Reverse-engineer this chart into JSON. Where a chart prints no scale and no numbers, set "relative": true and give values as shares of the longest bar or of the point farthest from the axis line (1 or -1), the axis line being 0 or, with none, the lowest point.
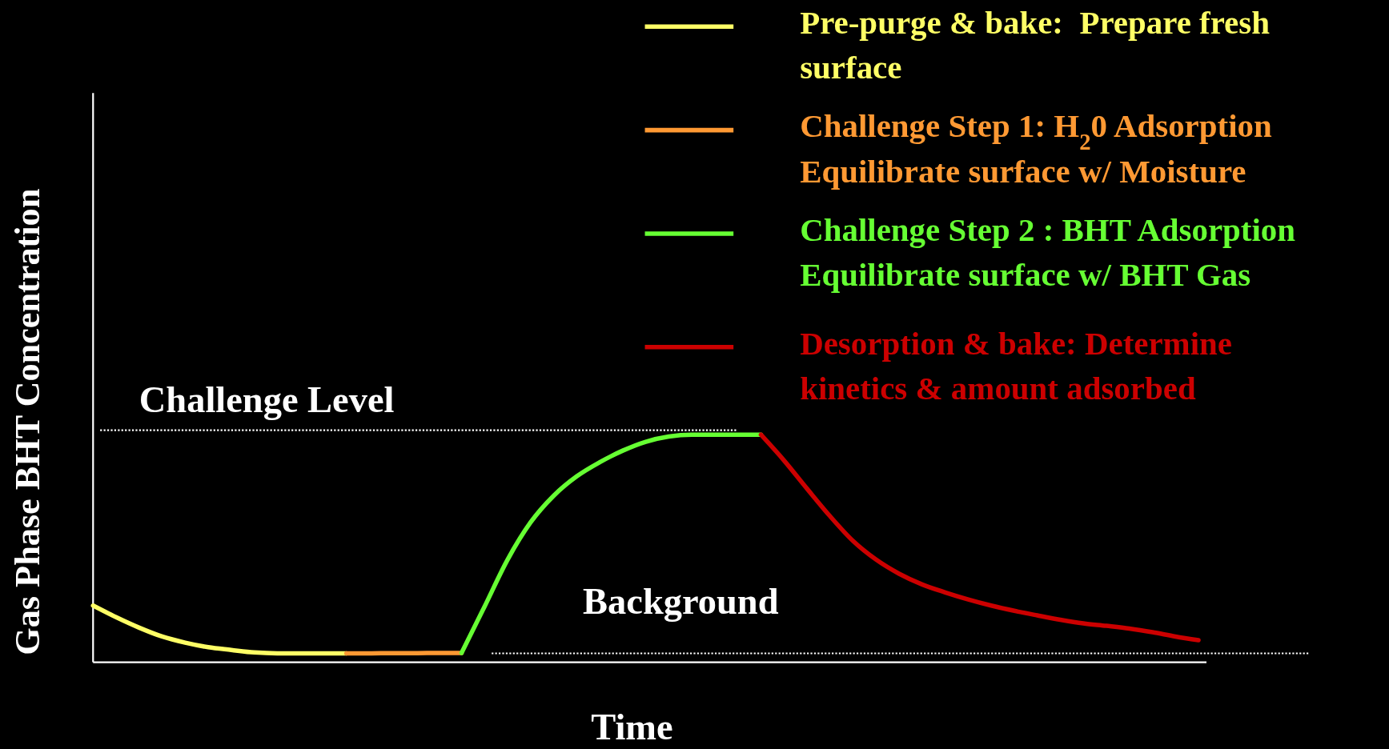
{
  "chart_data": {
    "type": "line",
    "relative": true,
    "xlabel": "Time",
    "ylabel": "Gas Phase BHT Concentration",
    "legend": "top right",
    "categories": [
      null,
      null,
      null,
      null,
      null,
      null,
      null,
      null,
      null,
      null,
      null,
      null,
      null,
      null,
      null,
      null,
      null,
      null,
      null,
      null,
      null,
      null,
      null,
      null,
      null,
      null,
      null,
      null,
      null,
      null,
      null,
      null,
      null,
      null,
      null,
      null,
      null,
      null,
      null,
      null,
      null,
      null,
      null,
      null,
      null,
      null,
      null,
      null,
      null
    ],
    "series": [
      {
        "name": "Pre-purge & bake:  Prepare fresh surface",
        "color": "#ffff66",
        "values": [
          0.249,
          0.198,
          0.152,
          0.113,
          0.086,
          0.066,
          0.054,
          0.043,
          0.039,
          0.039,
          0.039,
          0.039,
          null,
          null,
          null,
          null,
          null,
          null,
          null,
          null,
          null,
          null,
          null,
          null,
          null,
          null,
          null,
          null,
          null,
          null,
          null,
          null,
          null,
          null,
          null,
          null,
          null,
          null,
          null,
          null,
          null,
          null,
          null,
          null,
          null,
          null,
          null,
          null,
          null
        ]
      },
      {
        "name": "Challenge Step 1: H$_{2}$0 Adsorption Equilibrate surface w/ Moisture",
        "color": "#ff9933",
        "values": [
          null,
          null,
          null,
          null,
          null,
          null,
          null,
          null,
          null,
          null,
          null,
          0.039,
          0.039,
          0.04,
          0.04,
          0.041,
          0.041,
          null,
          null,
          null,
          null,
          null,
          null,
          null,
          null,
          null,
          null,
          null,
          null,
          null,
          null,
          null,
          null,
          null,
          null,
          null,
          null,
          null,
          null,
          null,
          null,
          null,
          null,
          null,
          null,
          null,
          null,
          null,
          null
        ]
      },
      {
        "name": "Challenge Step 2 : BHT Adsorption Equilibrate surface w/ BHT Gas",
        "color": "#66ff33",
        "values": [
          null,
          null,
          null,
          null,
          null,
          null,
          null,
          null,
          null,
          null,
          null,
          null,
          null,
          null,
          null,
          null,
          0.041,
          0.245,
          0.451,
          0.615,
          0.732,
          0.817,
          0.879,
          0.93,
          0.969,
          0.992,
          1,
          1,
          1,
          1,
          null,
          null,
          null,
          null,
          null,
          null,
          null,
          null,
          null,
          null,
          null,
          null,
          null,
          null,
          null,
          null,
          null,
          null,
          null
        ]
      },
      {
        "name": "Desorption & bake: Determine kinetics & amount adsorbed",
        "color": "#cc0000",
        "values": [
          null,
          null,
          null,
          null,
          null,
          null,
          null,
          null,
          null,
          null,
          null,
          null,
          null,
          null,
          null,
          null,
          null,
          null,
          null,
          null,
          null,
          null,
          null,
          null,
          null,
          null,
          null,
          null,
          null,
          1,
          0.887,
          0.763,
          0.642,
          0.533,
          0.451,
          0.389,
          0.342,
          0.307,
          0.276,
          0.249,
          0.226,
          0.206,
          0.187,
          0.171,
          0.16,
          0.148,
          0.132,
          0.113,
          0.097
        ]
      }
    ],
    "ref_lines": [
      {
        "axis": "y",
        "value": 1.02,
        "label": "Challenge Level",
        "color": "#ffffff",
        "line_style": "dotted"
      },
      {
        "axis": "y",
        "value": 0.039,
        "label": "Background",
        "color": "#ffffff",
        "line_style": "dotted"
      }
    ]
  }
}
